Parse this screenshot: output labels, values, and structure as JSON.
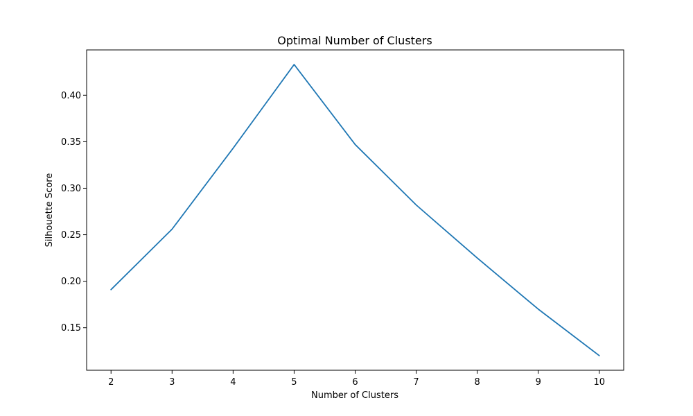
{
  "chart_data": {
    "type": "line",
    "title": "Optimal Number of Clusters",
    "xlabel": "Number of Clusters",
    "ylabel": "Silhouette Score",
    "x": [
      2,
      3,
      4,
      5,
      6,
      7,
      8,
      9,
      10
    ],
    "series": [
      {
        "values": [
          0.191,
          0.256,
          0.343,
          0.433,
          0.347,
          0.282,
          0.225,
          0.17,
          0.12
        ],
        "color": "#1f77b4"
      }
    ],
    "xticks": [
      2,
      3,
      4,
      5,
      6,
      7,
      8,
      9,
      10
    ],
    "xtick_labels": [
      "2",
      "3",
      "4",
      "5",
      "6",
      "7",
      "8",
      "9",
      "10"
    ],
    "yticks": [
      0.15,
      0.2,
      0.25,
      0.3,
      0.35,
      0.4
    ],
    "ytick_labels": [
      "0.15",
      "0.20",
      "0.25",
      "0.30",
      "0.35",
      "0.40"
    ],
    "xlim": [
      1.6,
      10.4
    ],
    "ylim": [
      0.1043,
      0.4487
    ],
    "grid": false,
    "legend": false
  }
}
